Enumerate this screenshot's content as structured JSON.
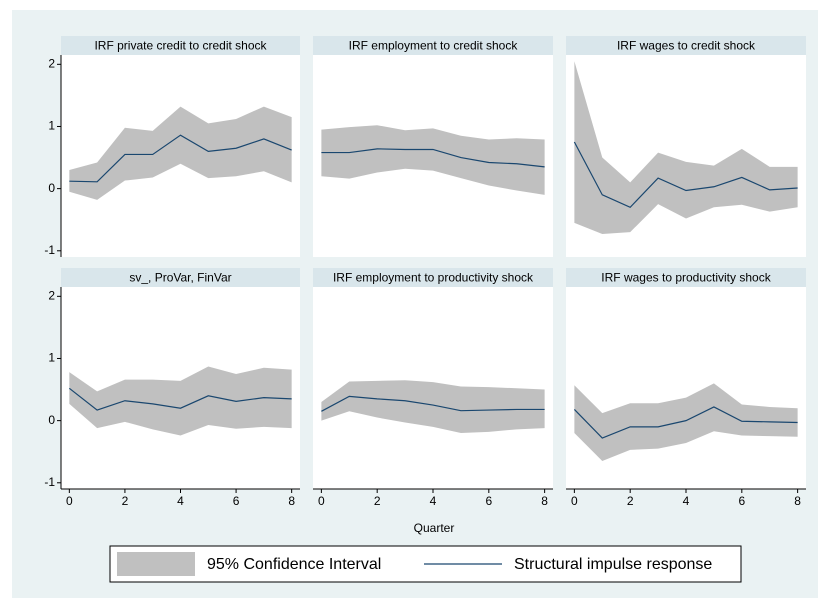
{
  "chart_data": {
    "type": "line",
    "xlabel": "Quarter",
    "x": [
      0,
      1,
      2,
      3,
      4,
      5,
      6,
      7,
      8
    ],
    "xlim": [
      -0.3,
      8.3
    ],
    "xticks": [
      0,
      2,
      4,
      6,
      8
    ],
    "ylim": [
      -1.1,
      2.15
    ],
    "yticks": [
      -1,
      0,
      1,
      2
    ],
    "ci_name": "95% Confidence Interval",
    "ci_color": "#c0c0c0",
    "line_name": "Structural impulse response",
    "line_color": "#1a476f",
    "panels": [
      {
        "title": "IRF private credit to credit shock",
        "values": [
          0.12,
          0.11,
          0.55,
          0.55,
          0.86,
          0.6,
          0.65,
          0.8,
          0.62
        ],
        "upper": [
          0.3,
          0.42,
          0.98,
          0.93,
          1.32,
          1.05,
          1.12,
          1.32,
          1.15
        ],
        "lower": [
          -0.05,
          -0.18,
          0.13,
          0.18,
          0.4,
          0.17,
          0.2,
          0.28,
          0.1
        ]
      },
      {
        "title": "IRF employment to credit shock",
        "values": [
          0.58,
          0.58,
          0.64,
          0.63,
          0.63,
          0.5,
          0.42,
          0.4,
          0.35
        ],
        "upper": [
          0.95,
          0.99,
          1.02,
          0.94,
          0.97,
          0.85,
          0.79,
          0.81,
          0.79
        ],
        "lower": [
          0.2,
          0.16,
          0.26,
          0.32,
          0.29,
          0.17,
          0.05,
          -0.03,
          -0.1
        ]
      },
      {
        "title": "IRF wages to credit shock",
        "values": [
          0.75,
          -0.1,
          -0.3,
          0.17,
          -0.03,
          0.03,
          0.18,
          -0.02,
          0.01
        ],
        "upper": [
          2.05,
          0.5,
          0.1,
          0.58,
          0.43,
          0.37,
          0.64,
          0.35,
          0.35
        ],
        "lower": [
          -0.55,
          -0.73,
          -0.7,
          -0.25,
          -0.48,
          -0.3,
          -0.26,
          -0.37,
          -0.3
        ]
      },
      {
        "title": "sv_, ProVar, FinVar",
        "values": [
          0.52,
          0.17,
          0.32,
          0.27,
          0.2,
          0.4,
          0.31,
          0.37,
          0.35
        ],
        "upper": [
          0.78,
          0.47,
          0.66,
          0.66,
          0.64,
          0.87,
          0.75,
          0.85,
          0.82
        ],
        "lower": [
          0.27,
          -0.12,
          -0.02,
          -0.14,
          -0.24,
          -0.07,
          -0.13,
          -0.1,
          -0.12
        ]
      },
      {
        "title": "IRF employment to productivity shock",
        "values": [
          0.15,
          0.39,
          0.35,
          0.32,
          0.25,
          0.16,
          0.17,
          0.18,
          0.18
        ],
        "upper": [
          0.3,
          0.63,
          0.64,
          0.65,
          0.62,
          0.55,
          0.54,
          0.52,
          0.5
        ],
        "lower": [
          0.0,
          0.15,
          0.05,
          -0.03,
          -0.1,
          -0.2,
          -0.18,
          -0.14,
          -0.12
        ]
      },
      {
        "title": "IRF wages to productivity shock",
        "values": [
          0.18,
          -0.28,
          -0.1,
          -0.1,
          0.0,
          0.22,
          -0.01,
          -0.02,
          -0.03
        ],
        "upper": [
          0.57,
          0.12,
          0.28,
          0.28,
          0.37,
          0.6,
          0.26,
          0.22,
          0.2
        ],
        "lower": [
          -0.2,
          -0.65,
          -0.47,
          -0.45,
          -0.36,
          -0.17,
          -0.24,
          -0.25,
          -0.26
        ]
      }
    ]
  }
}
